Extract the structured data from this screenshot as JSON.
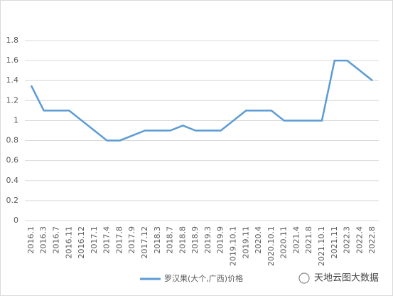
{
  "chart_data": {
    "type": "line",
    "categories": [
      "2016.1",
      "2016.3",
      "2016.7",
      "2016.11",
      "2016.12",
      "2017.1",
      "2017.4",
      "2017.8",
      "2017.9",
      "2017.12",
      "2018.3",
      "2018.7",
      "2018.8",
      "2018.9",
      "2019.3",
      "2019.9",
      "2019.10.1",
      "2019.11",
      "2020.4",
      "2020.10.1",
      "2020.11",
      "2021.4",
      "2021.8",
      "2021.10.1",
      "2021.11",
      "2022.3",
      "2022.4",
      "2022.8"
    ],
    "series": [
      {
        "name": "罗汉果(大个,广西)价格",
        "color": "#5b9bd5",
        "values": [
          1.35,
          1.1,
          1.1,
          1.1,
          1.0,
          0.9,
          0.8,
          0.8,
          0.85,
          0.9,
          0.9,
          0.9,
          0.95,
          0.9,
          0.9,
          0.9,
          1.0,
          1.1,
          1.1,
          1.1,
          1.0,
          1.0,
          1.0,
          1.0,
          1.6,
          1.6,
          1.5,
          1.4
        ]
      }
    ],
    "ylim": [
      0,
      1.8
    ],
    "yticks": [
      0,
      0.2,
      0.4,
      0.6,
      0.8,
      1,
      1.2,
      1.4,
      1.6,
      1.8
    ],
    "grid": true,
    "watermark": "天地云图大数据"
  }
}
